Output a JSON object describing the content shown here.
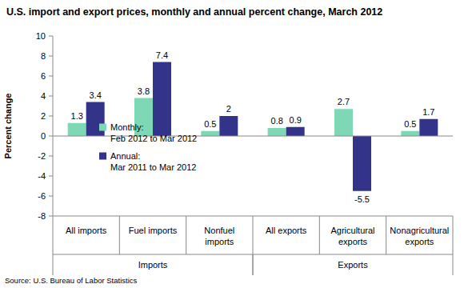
{
  "chart_data": {
    "type": "bar",
    "title": "U.S. import and export prices, monthly and annual percent change, March 2012",
    "y_label": "Percent change",
    "source": "Source: U.S. Bureau of Labor Statistics",
    "categories": [
      "All imports",
      "Fuel imports",
      "Nonfuel imports",
      "All exports",
      "Agricultural exports",
      "Nonagricultural exports"
    ],
    "groups": [
      {
        "label": "Imports",
        "count": 3
      },
      {
        "label": "Exports",
        "count": 3
      }
    ],
    "series": [
      {
        "name": "Monthly: Feb 2012 to Mar 2012",
        "color": "#7ed8b6",
        "values": [
          1.3,
          3.8,
          0.5,
          0.8,
          2.7,
          0.5
        ]
      },
      {
        "name": "Annual: Mar 2011 to Mar 2012",
        "color": "#34338a",
        "values": [
          3.4,
          7.4,
          2.0,
          0.9,
          -5.5,
          1.7
        ]
      }
    ],
    "ylim": [
      -8,
      10
    ],
    "yticks": [
      -8,
      -6,
      -4,
      -2,
      0,
      2,
      4,
      6,
      8,
      10
    ],
    "grid": false,
    "legend": "left",
    "data_labels": true
  }
}
